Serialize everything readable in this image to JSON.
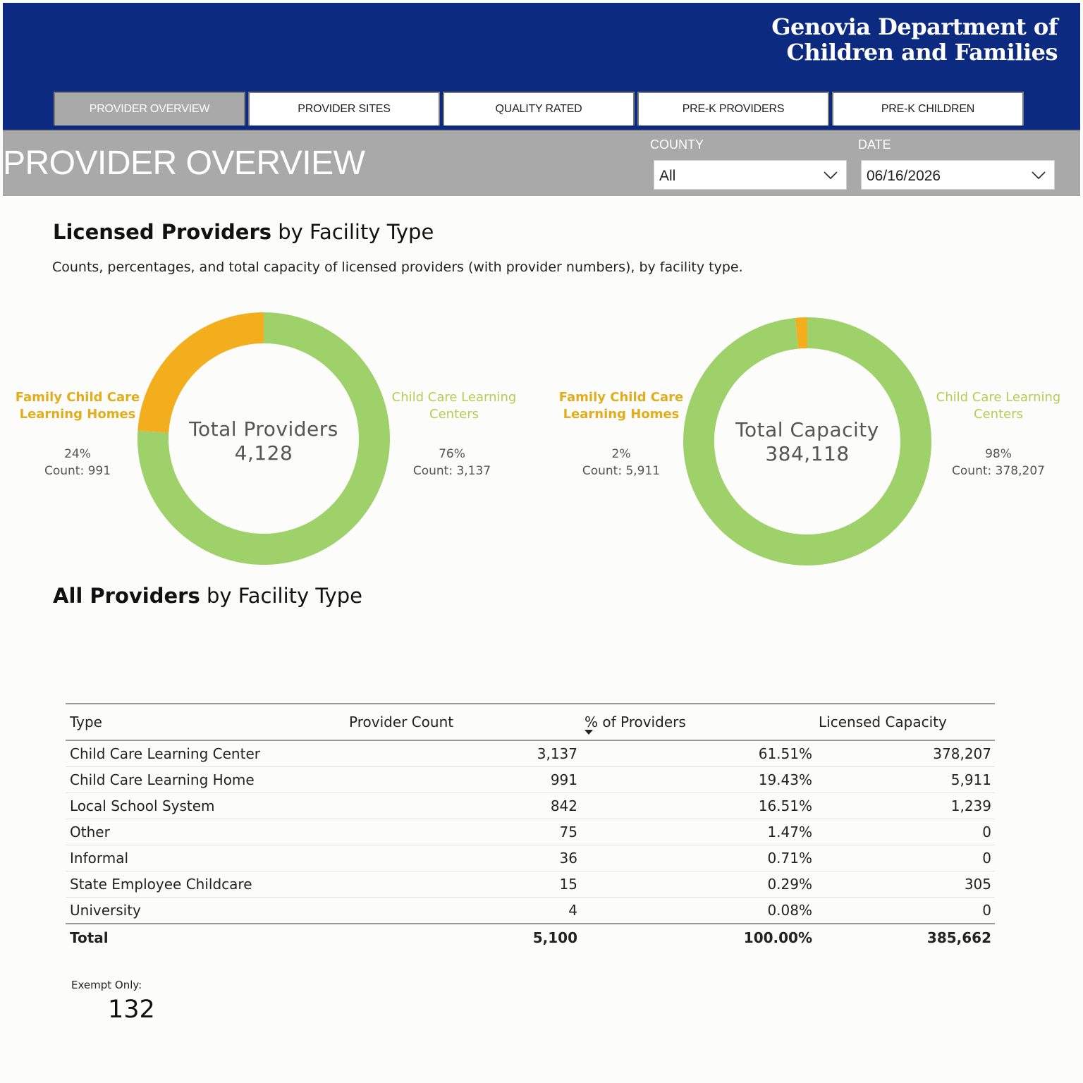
{
  "header": {
    "org_line1": "Genovia Department of",
    "org_line2": "Children and Families"
  },
  "tabs": [
    {
      "label": "PROVIDER OVERVIEW",
      "active": true
    },
    {
      "label": "PROVIDER SITES",
      "active": false
    },
    {
      "label": "QUALITY RATED",
      "active": false
    },
    {
      "label": "PRE-K PROVIDERS",
      "active": false
    },
    {
      "label": "PRE-K CHILDREN",
      "active": false
    }
  ],
  "page_title": "PROVIDER OVERVIEW",
  "filters": {
    "county": {
      "label": "COUNTY",
      "value": "All"
    },
    "date": {
      "label": "DATE",
      "value": "06/16/2026"
    }
  },
  "licensed": {
    "title_bold": "Licensed Providers",
    "title_rest": " by Facility Type",
    "subtitle": "Counts, percentages, and total capacity of licensed providers (with provider numbers), by facility type."
  },
  "colors": {
    "green": "#9fd16a",
    "orange": "#f2ae1c",
    "header_blue": "#0c2a80",
    "subbar_gray": "#a9a9a9"
  },
  "chart_data": [
    {
      "type": "pie",
      "center_title": "Total Providers",
      "center_value": "4,128",
      "slices": [
        {
          "name_line1": "Child Care Learning",
          "name_line2": "Centers",
          "pct_label": "76%",
          "count_label": "Count: 3,137",
          "value": 3137,
          "color": "#9fd16a"
        },
        {
          "name_line1": "Family Child Care",
          "name_line2": "Learning Homes",
          "pct_label": "24%",
          "count_label": "Count: 991",
          "value": 991,
          "color": "#f2ae1c"
        }
      ]
    },
    {
      "type": "pie",
      "center_title": "Total Capacity",
      "center_value": "384,118",
      "slices": [
        {
          "name_line1": "Child Care Learning",
          "name_line2": "Centers",
          "pct_label": "98%",
          "count_label": "Count: 378,207",
          "value": 378207,
          "color": "#9fd16a"
        },
        {
          "name_line1": "Family Child Care",
          "name_line2": "Learning Homes",
          "pct_label": "2%",
          "count_label": "Count: 5,911",
          "value": 5911,
          "color": "#f2ae1c"
        }
      ]
    }
  ],
  "all_providers": {
    "title_bold": "All Providers",
    "title_rest": " by Facility Type",
    "columns": [
      "Type",
      "Provider Count",
      "% of Providers",
      "Licensed Capacity"
    ],
    "rows": [
      {
        "type": "Child Care Learning Center",
        "count": "3,137",
        "pct": "61.51%",
        "capacity": "378,207"
      },
      {
        "type": "Child Care Learning Home",
        "count": "991",
        "pct": "19.43%",
        "capacity": "5,911"
      },
      {
        "type": "Local School System",
        "count": "842",
        "pct": "16.51%",
        "capacity": "1,239"
      },
      {
        "type": "Other",
        "count": "75",
        "pct": "1.47%",
        "capacity": "0"
      },
      {
        "type": "Informal",
        "count": "36",
        "pct": "0.71%",
        "capacity": "0"
      },
      {
        "type": "State Employee Childcare",
        "count": "15",
        "pct": "0.29%",
        "capacity": "305"
      },
      {
        "type": "University",
        "count": "4",
        "pct": "0.08%",
        "capacity": "0"
      }
    ],
    "total": {
      "type": "Total",
      "count": "5,100",
      "pct": "100.00%",
      "capacity": "385,662"
    }
  },
  "exempt": {
    "label": "Exempt Only:",
    "value": "132"
  }
}
